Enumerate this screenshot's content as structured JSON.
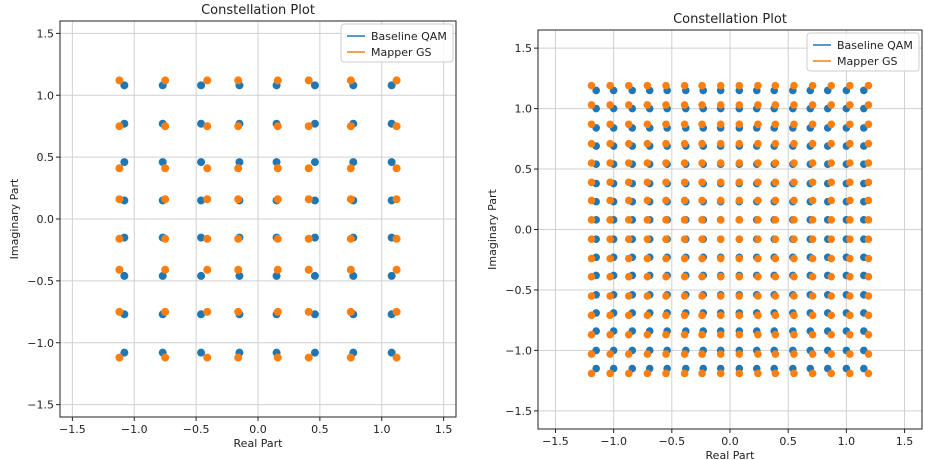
{
  "chart_data": [
    {
      "type": "scatter",
      "title": "Constellation Plot",
      "xlabel": "Real Part",
      "ylabel": "Imaginary Part",
      "xlim": [
        -1.6,
        1.6
      ],
      "ylim": [
        -1.6,
        1.6
      ],
      "xticks": [
        -1.5,
        -1.0,
        -0.5,
        0.0,
        0.5,
        1.0,
        1.5
      ],
      "yticks": [
        -1.5,
        -1.0,
        -0.5,
        0.0,
        0.5,
        1.0,
        1.5
      ],
      "tick_labels": [
        "−1.5",
        "−1.0",
        "−0.5",
        "0.0",
        "0.5",
        "1.0",
        "1.5"
      ],
      "grid": true,
      "legend_position": "top-right",
      "series": [
        {
          "name": "Baseline QAM",
          "color": "#1f77b4",
          "grid_levels": [
            -1.08,
            -0.77,
            -0.46,
            -0.15,
            0.15,
            0.46,
            0.77,
            1.08
          ]
        },
        {
          "name": "Mapper GS",
          "color": "#ff7f0e",
          "grid_levels": [
            -1.12,
            -0.75,
            -0.41,
            -0.16,
            0.16,
            0.41,
            0.75,
            1.12
          ],
          "offset_from_baseline": 0.04
        }
      ]
    },
    {
      "type": "scatter",
      "title": "Constellation Plot",
      "xlabel": "Real Part",
      "ylabel": "Imaginary Part",
      "xlim": [
        -1.65,
        1.65
      ],
      "ylim": [
        -1.65,
        1.65
      ],
      "xticks": [
        -1.5,
        -1.0,
        -0.5,
        0.0,
        0.5,
        1.0,
        1.5
      ],
      "yticks": [
        -1.5,
        -1.0,
        -0.5,
        0.0,
        0.5,
        1.0,
        1.5
      ],
      "tick_labels": [
        "−1.5",
        "−1.0",
        "−0.5",
        "0.0",
        "0.5",
        "1.0",
        "1.5"
      ],
      "grid": true,
      "legend_position": "top-right",
      "series": [
        {
          "name": "Baseline QAM",
          "color": "#1f77b4",
          "grid_levels": [
            -1.15,
            -1.0,
            -0.84,
            -0.69,
            -0.54,
            -0.38,
            -0.23,
            -0.08,
            0.08,
            0.23,
            0.38,
            0.54,
            0.69,
            0.84,
            1.0,
            1.15
          ]
        },
        {
          "name": "Mapper GS",
          "color": "#ff7f0e",
          "grid_levels": [
            -1.19,
            -1.03,
            -0.87,
            -0.71,
            -0.55,
            -0.39,
            -0.24,
            -0.08,
            0.08,
            0.24,
            0.39,
            0.55,
            0.71,
            0.87,
            1.03,
            1.19
          ],
          "offset_from_baseline": 0.03
        }
      ]
    }
  ]
}
